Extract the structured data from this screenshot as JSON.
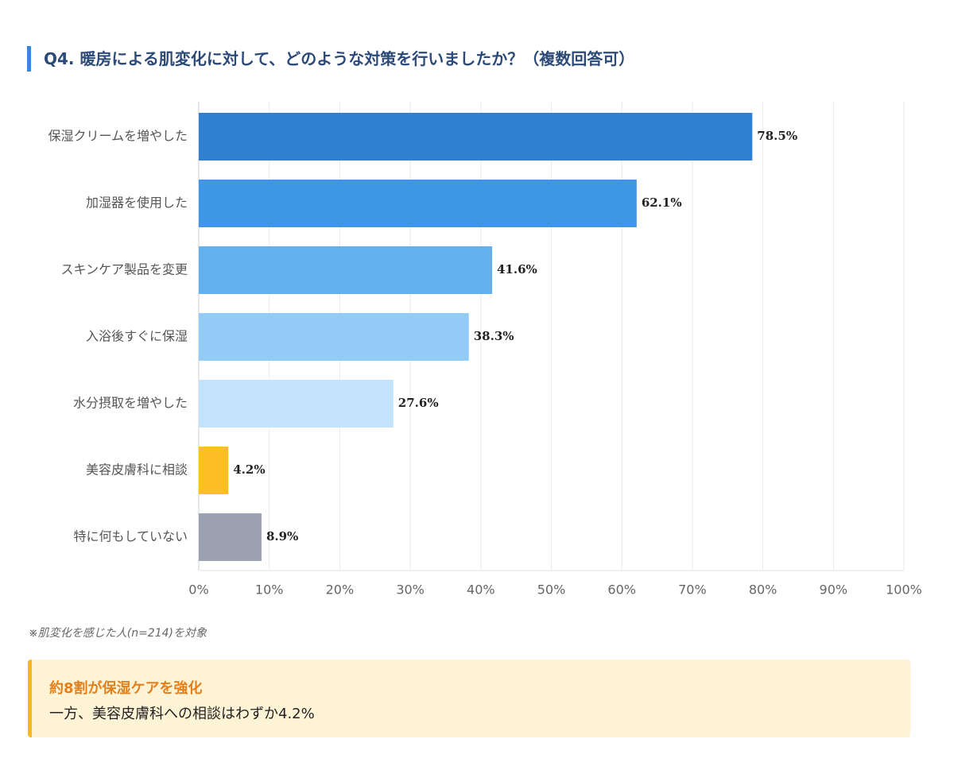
{
  "chart_data": {
    "type": "bar",
    "orientation": "horizontal",
    "title": "Q4. 暖房による肌変化に対して、どのような対策を行いましたか？（複数回答可）",
    "categories": [
      "保湿クリームを増やした",
      "加湿器を使用した",
      "スキンケア製品を変更",
      "入浴後すぐに保湿",
      "水分摂取を増やした",
      "美容皮膚科に相談",
      "特に何もしていない"
    ],
    "values": [
      78.5,
      62.1,
      41.6,
      38.3,
      27.6,
      4.2,
      8.9
    ],
    "value_labels": [
      "78.5%",
      "62.1%",
      "41.6%",
      "38.3%",
      "27.6%",
      "4.2%",
      "8.9%"
    ],
    "colors": [
      "#2f80d1",
      "#3f96e6",
      "#62b0ee",
      "#92cbf5",
      "#c3e2fb",
      "#fbbf24",
      "#9ca1b1"
    ],
    "xlim": [
      0,
      100
    ],
    "xticks": [
      {
        "value": 0,
        "label": "0%"
      },
      {
        "value": 10,
        "label": "10%"
      },
      {
        "value": 20,
        "label": "20%"
      },
      {
        "value": 30,
        "label": "30%"
      },
      {
        "value": 40,
        "label": "40%"
      },
      {
        "value": 50,
        "label": "50%"
      },
      {
        "value": 60,
        "label": "60%"
      },
      {
        "value": 70,
        "label": "70%"
      },
      {
        "value": 80,
        "label": "80%"
      },
      {
        "value": 90,
        "label": "90%"
      },
      {
        "value": 100,
        "label": "100%"
      }
    ],
    "grid": true
  },
  "note": "※肌変化を感じた人(n=214)を対象",
  "callout": {
    "title": "約8割が保湿ケアを強化",
    "text": "一方、美容皮膚科への相談はわずか4.2%"
  }
}
